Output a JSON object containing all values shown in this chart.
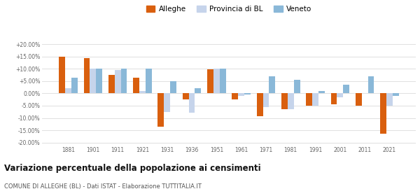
{
  "years": [
    1881,
    1901,
    1911,
    1921,
    1931,
    1936,
    1951,
    1961,
    1971,
    1981,
    1991,
    2001,
    2011,
    2021
  ],
  "alleghe": [
    15.0,
    14.2,
    7.5,
    6.5,
    -13.5,
    -2.5,
    9.8,
    -2.5,
    -9.2,
    -6.5,
    -5.0,
    -4.5,
    -5.0,
    -16.5
  ],
  "provincia_bl": [
    2.0,
    10.0,
    9.5,
    1.0,
    -7.5,
    -8.0,
    10.0,
    -1.0,
    -5.5,
    -6.5,
    -5.0,
    -1.5,
    0.0,
    -5.0
  ],
  "veneto": [
    6.5,
    10.0,
    10.0,
    10.0,
    5.0,
    2.0,
    10.0,
    -0.5,
    7.0,
    5.5,
    1.0,
    3.5,
    7.0,
    -1.0
  ],
  "color_alleghe": "#d95f0e",
  "color_provincia": "#c6d4eb",
  "color_veneto": "#8ab8d8",
  "title": "Variazione percentuale della popolazione ai censimenti",
  "subtitle": "COMUNE DI ALLEGHE (BL) - Dati ISTAT - Elaborazione TUTTITALIA.IT",
  "legend_labels": [
    "Alleghe",
    "Provincia di BL",
    "Veneto"
  ],
  "ylim": [
    -21,
    22
  ],
  "yticks": [
    -20,
    -15,
    -10,
    -5,
    0,
    5,
    10,
    15,
    20
  ],
  "ytick_labels": [
    "-20.00%",
    "-15.00%",
    "-10.00%",
    "-5.00%",
    "0.00%",
    "+5.00%",
    "+10.00%",
    "+15.00%",
    "+20.00%"
  ],
  "bar_width": 0.25,
  "background_color": "#ffffff",
  "grid_color": "#e0e0e0"
}
